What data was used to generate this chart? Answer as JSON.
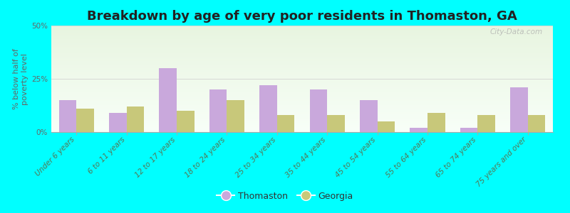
{
  "title": "Breakdown by age of very poor residents in Thomaston, GA",
  "ylabel": "% below half of\npoverty level",
  "categories": [
    "Under 6 years",
    "6 to 11 years",
    "12 to 17 years",
    "18 to 24 years",
    "25 to 34 years",
    "35 to 44 years",
    "45 to 54 years",
    "55 to 64 years",
    "65 to 74 years",
    "75 years and over"
  ],
  "thomaston_values": [
    15,
    9,
    30,
    20,
    22,
    20,
    15,
    2,
    2,
    21
  ],
  "georgia_values": [
    11,
    12,
    10,
    15,
    8,
    8,
    5,
    9,
    8,
    8
  ],
  "thomaston_color": "#c9a8dc",
  "georgia_color": "#c8c87a",
  "outer_bg": "#00ffff",
  "ylim": [
    0,
    50
  ],
  "yticks": [
    0,
    25,
    50
  ],
  "ytick_labels": [
    "0%",
    "25%",
    "50%"
  ],
  "legend_thomaston": "Thomaston",
  "legend_georgia": "Georgia",
  "title_fontsize": 13,
  "axis_label_fontsize": 8,
  "tick_fontsize": 7.5,
  "bar_width": 0.35,
  "watermark_text": "City-Data.com",
  "watermark_color": "#aaaaaa",
  "grid_color": "#cccccc",
  "spine_color": "#aaaaaa",
  "tick_label_color": "#557755",
  "ytick_color": "#666666",
  "ylabel_color": "#666666"
}
